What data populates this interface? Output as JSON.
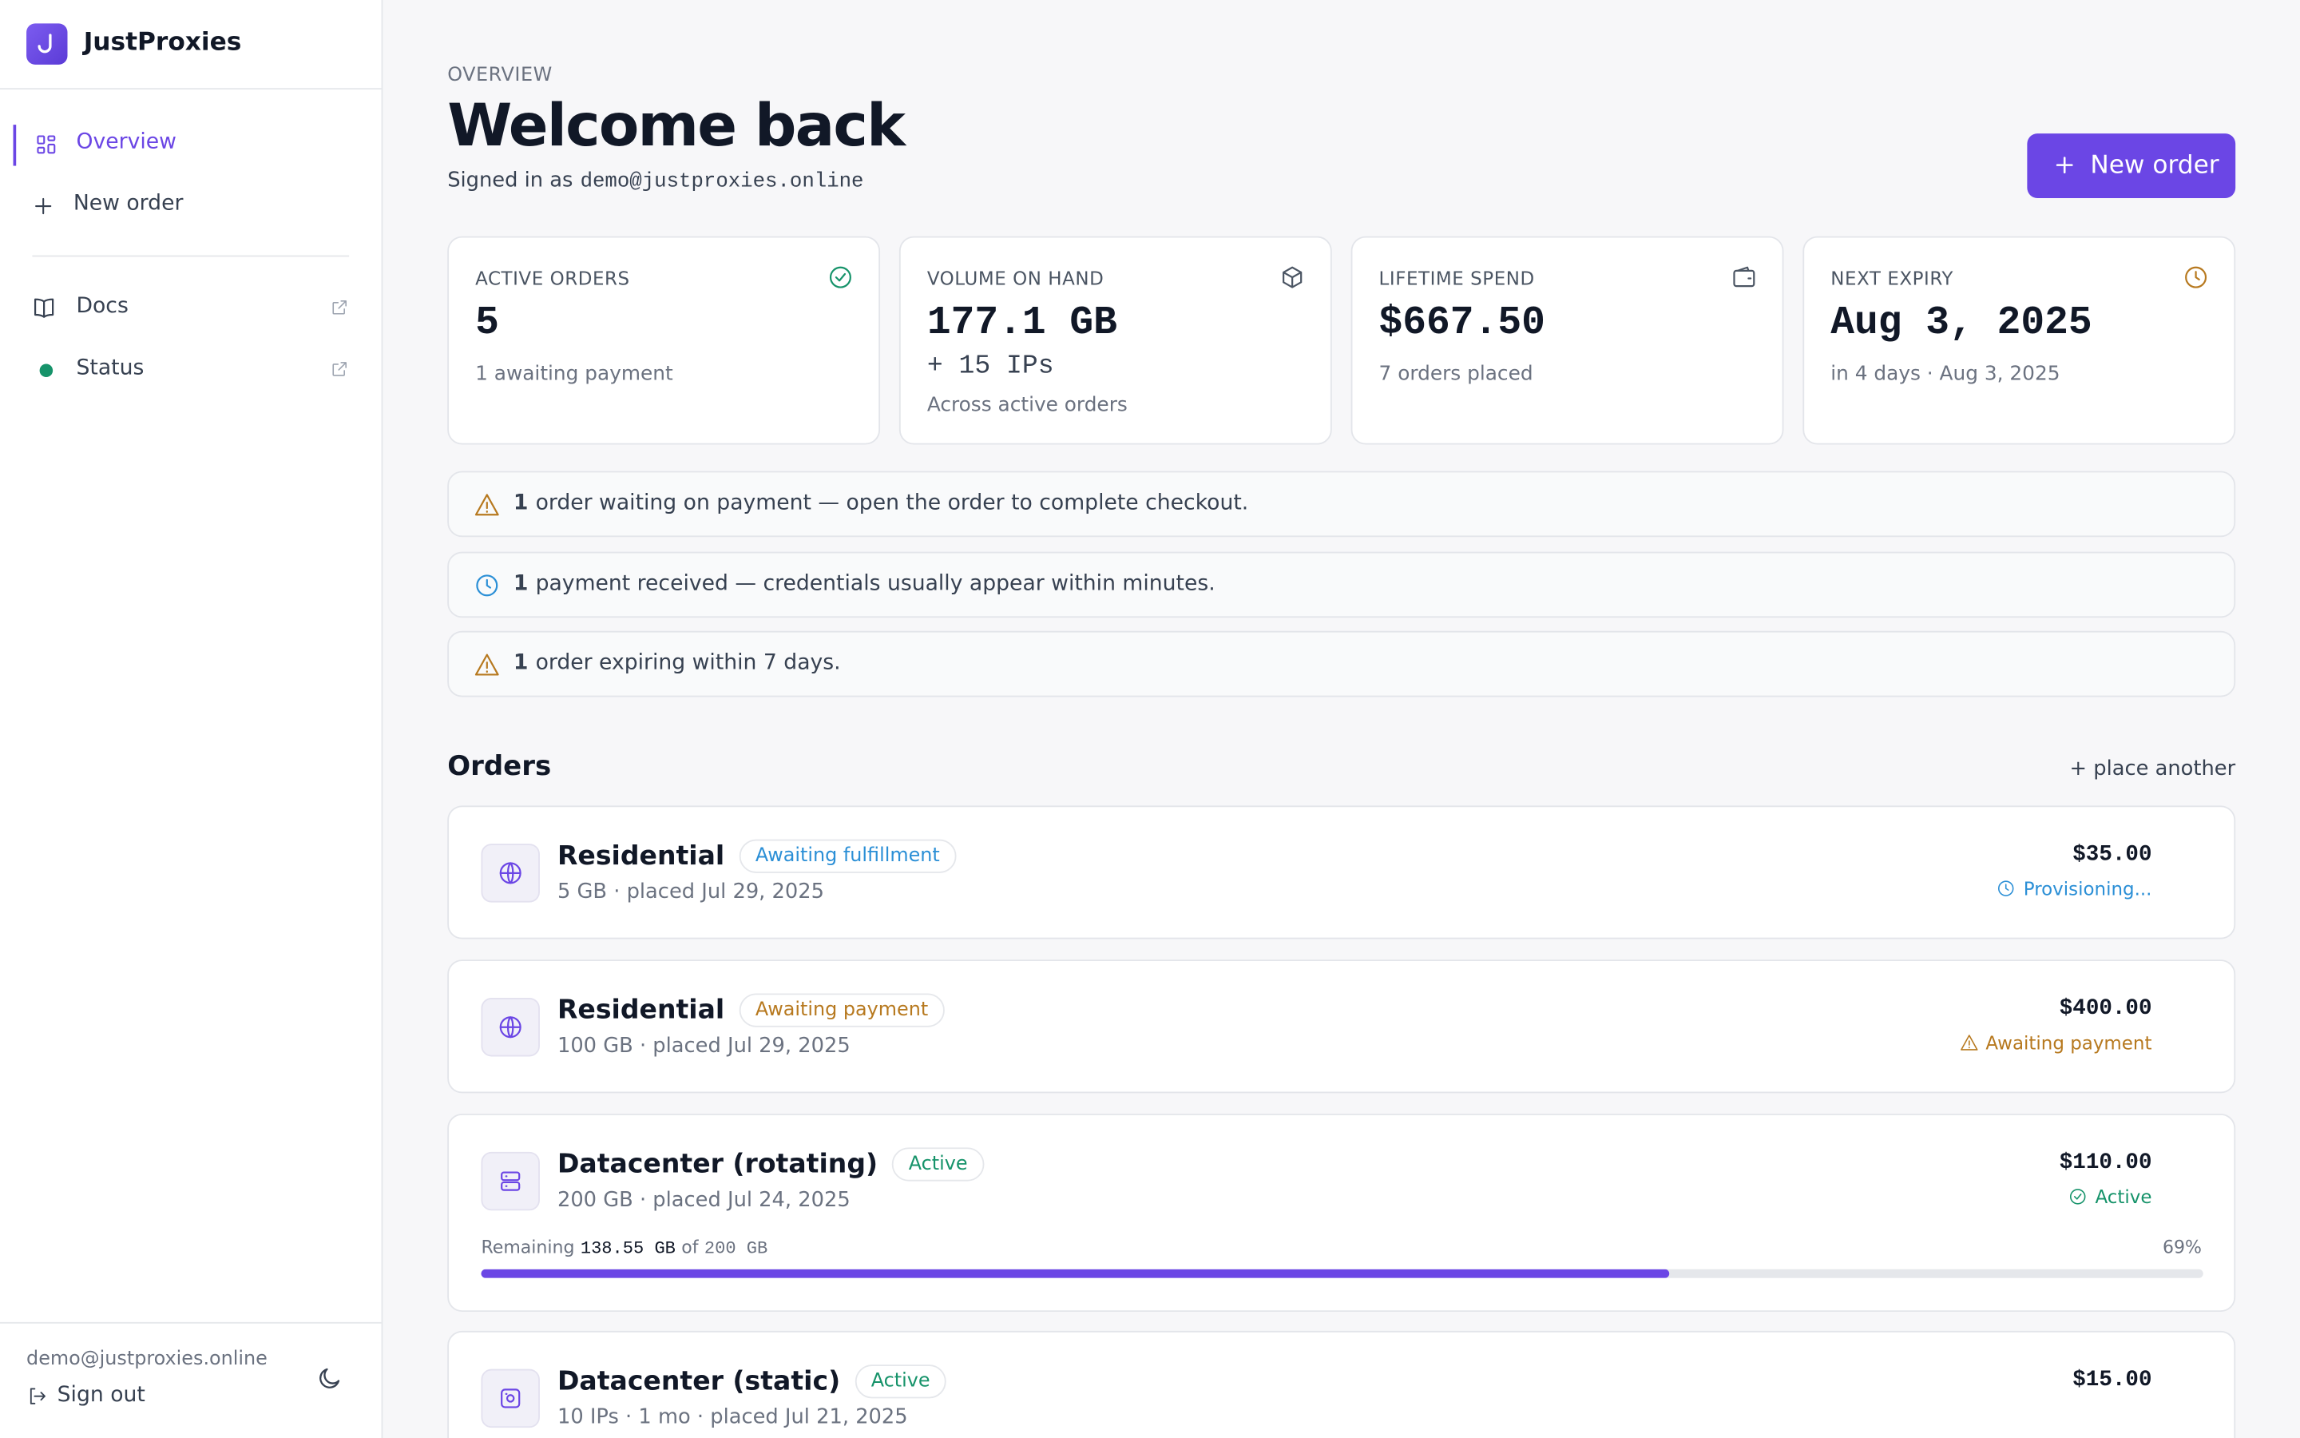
{
  "brand": "JustProxies",
  "nav": [
    {
      "label": "Overview"
    },
    {
      "label": "New order"
    }
  ],
  "links": [
    {
      "label": "Docs"
    },
    {
      "label": "Status"
    }
  ],
  "footer": {
    "email": "demo@justproxies.online",
    "sign_out": "Sign out"
  },
  "header": {
    "eyebrow": "OVERVIEW",
    "title": "Welcome back",
    "signed_in_prefix": "Signed in as",
    "email": "demo@justproxies.online",
    "button": "New order"
  },
  "stats": [
    {
      "label": "ACTIVE ORDERS",
      "value": "5",
      "sub": "1 awaiting payment"
    },
    {
      "label": "VOLUME ON HAND",
      "value": "177.1 GB",
      "value2": "+ 15 IPs",
      "sub": "Across active orders"
    },
    {
      "label": "LIFETIME SPEND",
      "value": "$667.50",
      "sub": "7 orders placed"
    },
    {
      "label": "NEXT EXPIRY",
      "value": "Aug 3, 2025",
      "sub": "in 4 days · Aug 3, 2025"
    }
  ],
  "alerts": [
    {
      "count": "1",
      "text": "order waiting on payment — open the order to complete checkout."
    },
    {
      "count": "1",
      "text": "payment received — credentials usually appear within minutes."
    },
    {
      "count": "1",
      "text": "order expiring within 7 days."
    }
  ],
  "orders_section": {
    "title": "Orders",
    "action": "+ place another"
  },
  "orders": [
    {
      "name": "Residential",
      "badge": "Awaiting fulfillment",
      "meta": "5 GB · placed Jul 29, 2025",
      "price": "$35.00",
      "status": "Provisioning..."
    },
    {
      "name": "Residential",
      "badge": "Awaiting payment",
      "meta": "100 GB · placed Jul 29, 2025",
      "price": "$400.00",
      "status": "Awaiting payment"
    },
    {
      "name": "Datacenter (rotating)",
      "badge": "Active",
      "meta": "200 GB · placed Jul 24, 2025",
      "price": "$110.00",
      "status": "Active",
      "progress": {
        "prefix": "Remaining",
        "remaining": "138.55 GB",
        "of": "of",
        "total": "200 GB",
        "percent": "69%"
      }
    },
    {
      "name": "Datacenter (static)",
      "badge": "Active",
      "meta": "10 IPs · 1 mo · placed Jul 21, 2025",
      "price": "$15.00"
    }
  ]
}
